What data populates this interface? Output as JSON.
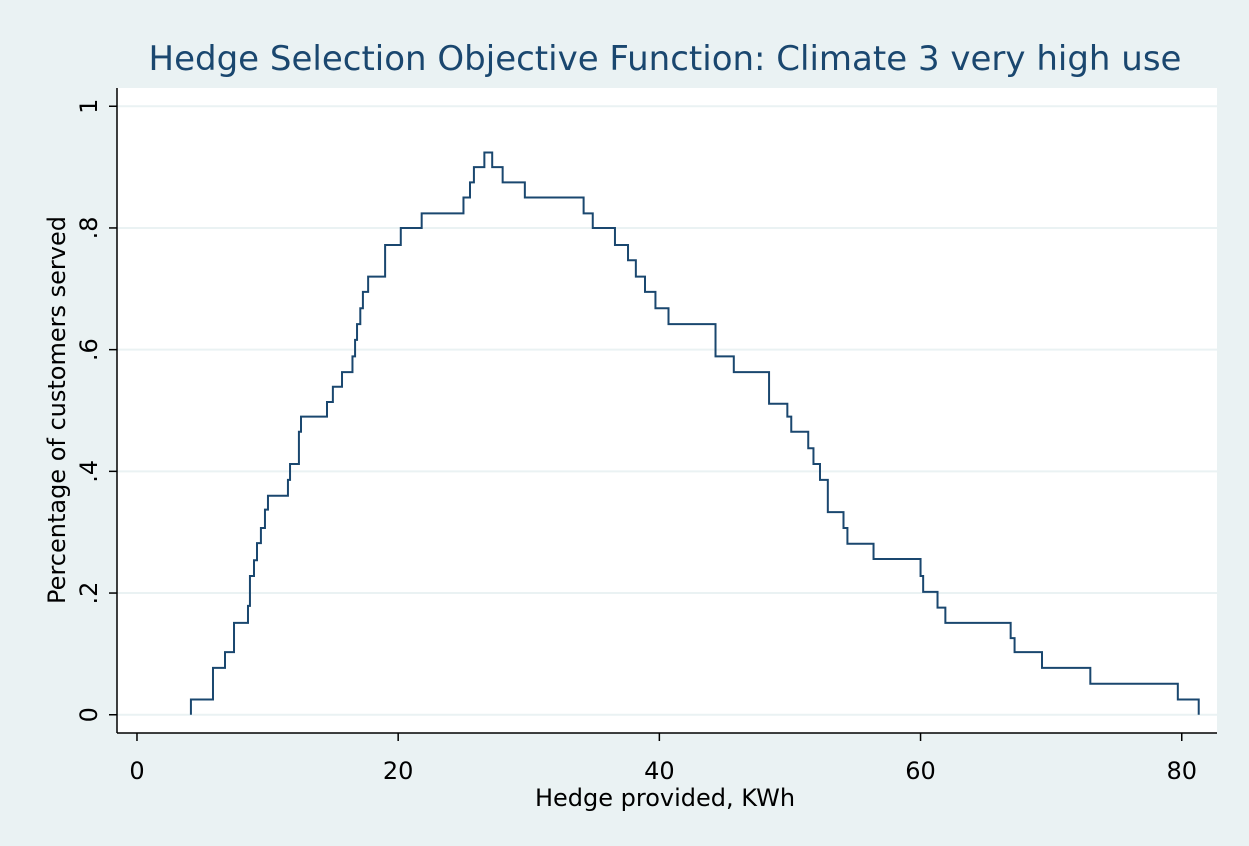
{
  "chart_data": {
    "type": "line",
    "step": true,
    "title": "Hedge Selection Objective Function: Climate 3 very high use",
    "x_label": "Hedge provided, KWh",
    "y_label": "Percentage of customers served",
    "color": "#1a476f",
    "grid": true,
    "xlim": [
      -1.53,
      82.7
    ],
    "ylim": [
      -0.03,
      1.03
    ],
    "xticks": [
      0,
      20,
      40,
      60,
      80
    ],
    "yticks": [
      0,
      {
        "value": 0.2,
        "label": ".2"
      },
      {
        "value": 0.4,
        "label": ".4"
      },
      {
        "value": 0.6,
        "label": ".6"
      },
      {
        "value": 0.8,
        "label": ".8"
      },
      1
    ],
    "x": [
      4.13,
      4.13,
      5.82,
      6.74,
      7.43,
      8.5,
      8.65,
      8.96,
      9.19,
      9.49,
      9.8,
      10.03,
      11.56,
      11.72,
      12.4,
      12.56,
      14.55,
      15.0,
      15.7,
      16.5,
      16.7,
      16.85,
      17.1,
      17.3,
      17.7,
      19.0,
      20.2,
      21.8,
      25.0,
      25.5,
      25.8,
      26.6,
      27.2,
      28.0,
      29.7,
      34.2,
      34.9,
      36.6,
      37.6,
      38.2,
      38.9,
      39.7,
      40.7,
      44.3,
      45.7,
      48.4,
      49.8,
      50.1,
      51.4,
      51.8,
      52.3,
      52.9,
      54.1,
      54.4,
      56.4,
      60.0,
      60.2,
      61.3,
      61.9,
      66.9,
      67.2,
      69.3,
      73.0,
      79.7,
      81.3
    ],
    "values": [
      0,
      0.025,
      0.077,
      0.103,
      0.151,
      0.179,
      0.228,
      0.254,
      0.282,
      0.307,
      0.337,
      0.36,
      0.386,
      0.412,
      0.465,
      0.49,
      0.514,
      0.539,
      0.563,
      0.589,
      0.616,
      0.642,
      0.668,
      0.695,
      0.72,
      0.772,
      0.8,
      0.824,
      0.85,
      0.875,
      0.9,
      0.924,
      0.9,
      0.875,
      0.85,
      0.824,
      0.8,
      0.772,
      0.747,
      0.72,
      0.695,
      0.668,
      0.642,
      0.589,
      0.563,
      0.511,
      0.49,
      0.465,
      0.438,
      0.412,
      0.386,
      0.333,
      0.307,
      0.281,
      0.256,
      0.228,
      0.202,
      0.176,
      0.151,
      0.126,
      0.103,
      0.077,
      0.051,
      0.025,
      0
    ]
  }
}
